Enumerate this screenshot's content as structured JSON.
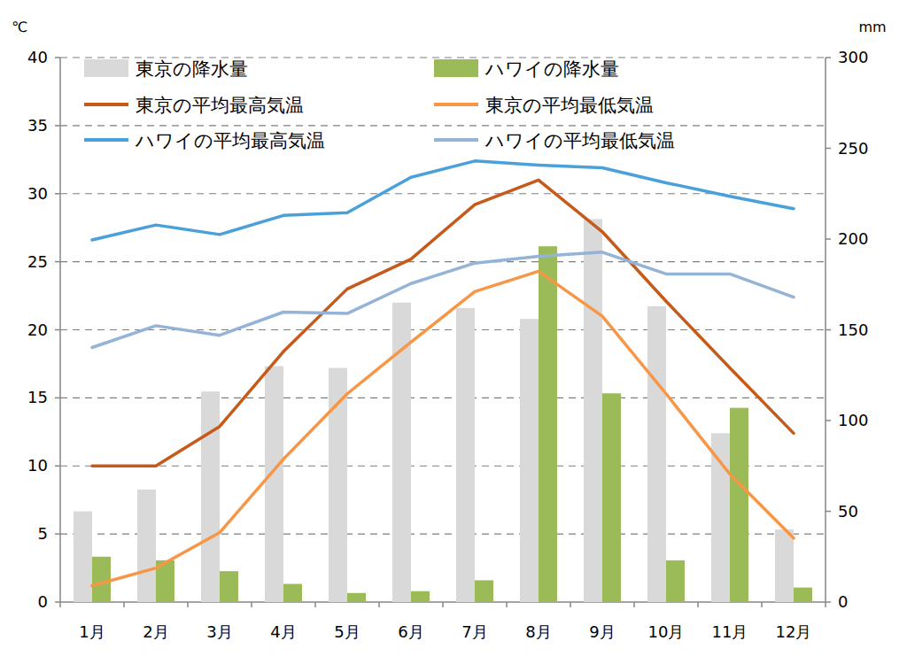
{
  "chart_data": {
    "type": "bar",
    "y_label": "℃",
    "y2_label": "mm",
    "categories": [
      "1月",
      "2月",
      "3月",
      "4月",
      "5月",
      "6月",
      "7月",
      "8月",
      "9月",
      "10月",
      "11月",
      "12月"
    ],
    "ylim": [
      0,
      40
    ],
    "yticks": [
      0,
      5,
      10,
      15,
      20,
      25,
      30,
      35,
      40
    ],
    "y2lim": [
      0,
      300
    ],
    "y2ticks": [
      0,
      50,
      100,
      150,
      200,
      250,
      300
    ],
    "grid": true,
    "legend": "top",
    "series": [
      {
        "name": "東京の降水量",
        "type": "bar",
        "axis": "y2",
        "color": "#d9d9d9",
        "values": [
          50,
          62,
          116,
          130,
          129,
          165,
          162,
          156,
          211,
          163,
          93,
          40
        ]
      },
      {
        "name": "ハワイの降水量",
        "type": "bar",
        "axis": "y2",
        "color": "#9bbb59",
        "values": [
          25,
          23,
          17,
          10,
          5,
          6,
          12,
          196,
          115,
          23,
          107,
          8
        ]
      },
      {
        "name": "東京の平均最高気温",
        "type": "line",
        "color": "#c55a1a",
        "values": [
          10.0,
          10.0,
          12.9,
          18.4,
          23.0,
          25.2,
          29.2,
          31.0,
          27.2,
          22.1,
          17.2,
          12.4
        ]
      },
      {
        "name": "東京の平均最低気温",
        "type": "line",
        "color": "#f79646",
        "values": [
          1.2,
          2.5,
          5.1,
          10.5,
          15.3,
          19.1,
          22.8,
          24.3,
          21.0,
          15.3,
          9.4,
          4.7
        ]
      },
      {
        "name": "ハワイの平均最高気温",
        "type": "line",
        "color": "#4aa0d8",
        "values": [
          26.6,
          27.7,
          27.0,
          28.4,
          28.6,
          31.2,
          32.4,
          32.1,
          31.9,
          30.8,
          29.8,
          28.9
        ]
      },
      {
        "name": "ハワイの平均最低気温",
        "type": "line",
        "color": "#95b3d7",
        "values": [
          18.7,
          20.3,
          19.6,
          21.3,
          21.2,
          23.4,
          24.9,
          25.4,
          25.7,
          24.1,
          24.1,
          22.4
        ]
      }
    ]
  }
}
